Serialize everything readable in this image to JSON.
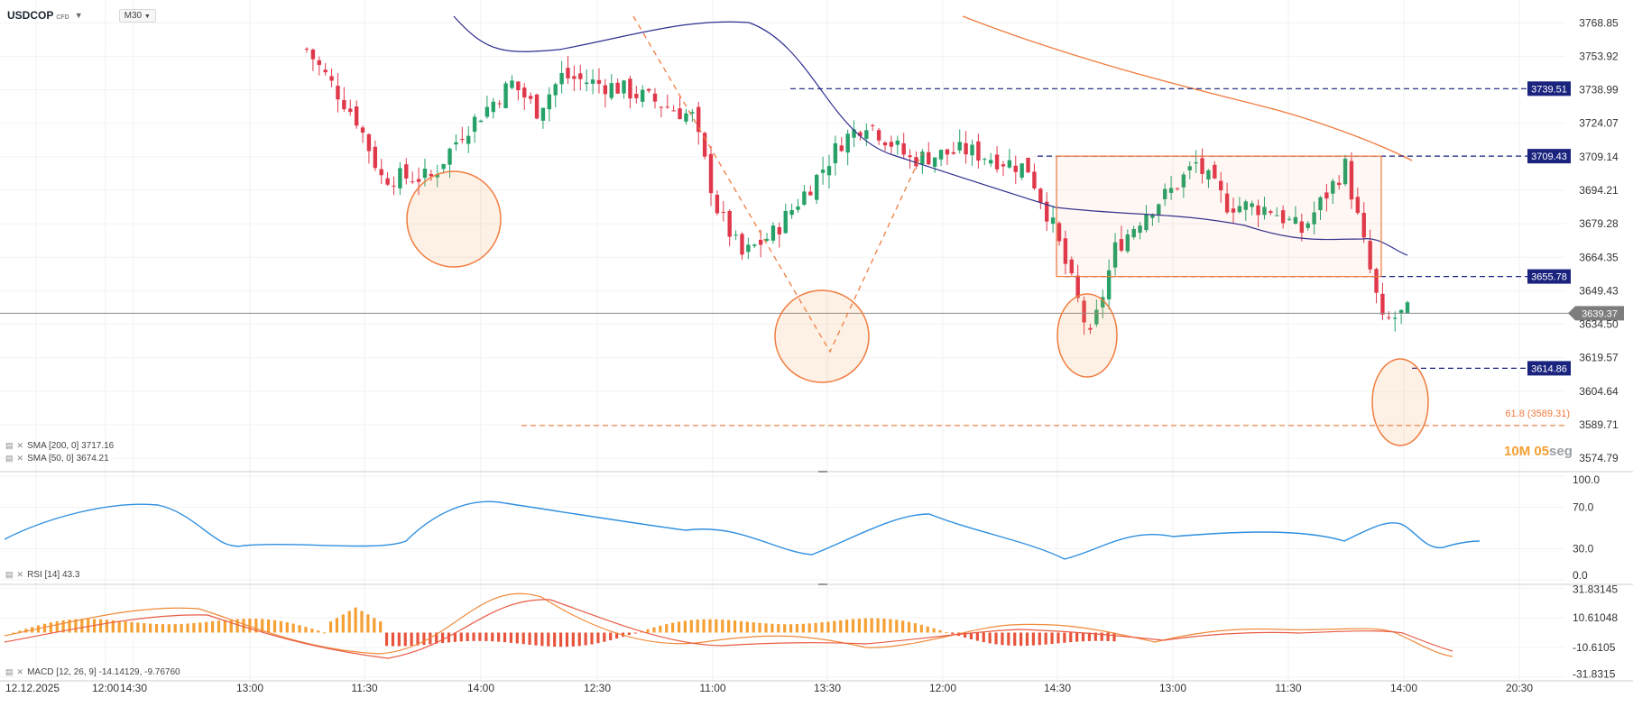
{
  "instrument": {
    "symbol": "USDCOP",
    "suffix": "CFD",
    "timeframe": "M30"
  },
  "indicators": {
    "sma200_label": "SMA [200, 0]  3717.16",
    "sma50_label": "SMA [50, 0]  3674.21",
    "rsi_label": "RSI [14]  43.3",
    "macd_label": "MACD [12, 26, 9]  -14.14129,  -9.76760"
  },
  "colors": {
    "up": "#26a269",
    "down": "#e0384b",
    "sma200": "#f07c3f",
    "sma50": "#2d2f8f",
    "rsi": "#2f8fe0",
    "macd_pos": "#f5a033",
    "macd_neg": "#e8543b",
    "marker": "#f07c3f",
    "level": "#1a237e"
  },
  "timer": {
    "minutes": "10",
    "m": "M",
    "seconds": "05",
    "s": "seg"
  },
  "chart_data": [
    {
      "type": "candlestick",
      "title": "USDCOP",
      "price_axis": {
        "ticks": [
          3768.85,
          3753.92,
          3738.99,
          3724.07,
          3709.14,
          3694.21,
          3679.28,
          3664.35,
          3649.43,
          3634.5,
          3619.57,
          3604.64,
          3589.71,
          3574.79
        ],
        "ylim": [
          3570,
          3775
        ]
      },
      "time_axis": {
        "labels": [
          "12.12.2025",
          "12:00",
          "14:30",
          "13:00",
          "11:30",
          "14:00",
          "12:30",
          "11:00",
          "13:30",
          "12:00",
          "14:30",
          "13:00",
          "11:30",
          "14:00",
          "20:30"
        ]
      },
      "current_price": 3639.37,
      "levels": [
        {
          "label": "3739.51",
          "value": 3739.51
        },
        {
          "label": "3709.43",
          "value": 3709.43
        },
        {
          "label": "3655.78",
          "value": 3655.78
        },
        {
          "label": "3614.86",
          "value": 3614.86
        }
      ],
      "fib_label": "61.8 (3589.31)",
      "fib_value": 3589.31,
      "box": {
        "top": 3709.43,
        "bottom": 3655.78
      },
      "series": [
        {
          "name": "SMA [200, 0]",
          "last": 3717.16
        },
        {
          "name": "SMA [50, 0]",
          "last": 3674.21
        }
      ]
    },
    {
      "type": "line",
      "title": "RSI [14]",
      "ylim": [
        0,
        100
      ],
      "ticks": [
        "100.0",
        "70.0",
        "30.0",
        "0.0"
      ],
      "last": 43.3
    },
    {
      "type": "bar",
      "title": "MACD [12, 26, 9]",
      "ticks": [
        "31.83145",
        "10.61048",
        "-10.6105",
        "-31.8315"
      ],
      "macd": -14.14129,
      "signal": -9.7676
    }
  ]
}
